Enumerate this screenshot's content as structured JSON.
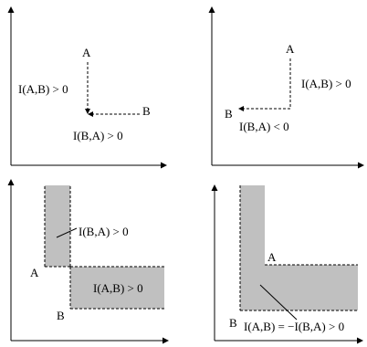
{
  "panels": {
    "top_left": {
      "point_a": "A",
      "point_b": "B",
      "label_ab": "I(A,B) > 0",
      "label_ba": "I(B,A) > 0"
    },
    "top_right": {
      "point_a": "A",
      "point_b": "B",
      "label_ab": "I(A,B) > 0",
      "label_ba": "I(B,A) < 0"
    },
    "bottom_left": {
      "point_a": "A",
      "point_b": "B",
      "label_ba": "I(B,A) > 0",
      "label_ab": "I(A,B) > 0"
    },
    "bottom_right": {
      "point_a": "A",
      "point_b": "B",
      "label_relation": "I(A,B) = −I(B,A) > 0"
    }
  },
  "colors": {
    "region_fill": "#c0c0c0",
    "stroke": "#000000"
  }
}
